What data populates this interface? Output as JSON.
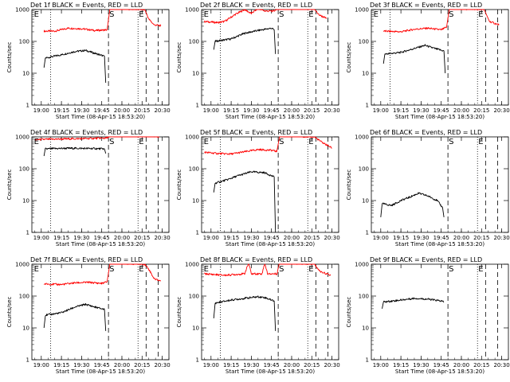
{
  "figure": {
    "x_axis_label": "Start Time (08-Apr-15 18:53:20)",
    "y_axis_label": "Counts/sec",
    "x_tick_labels": [
      "19:00",
      "19:15",
      "19:30",
      "19:45",
      "20:00",
      "20:15",
      "20:30"
    ],
    "y_tick_labels": [
      "1",
      "10",
      "100",
      "1000"
    ],
    "colors": {
      "events": "#000000",
      "lld": "#ff0000",
      "background": "#ffffff"
    }
  },
  "chart_data": [
    {
      "type": "line",
      "title": "Det 1f BLACK = Events, RED = LLD",
      "xlabel": "Start Time (08-Apr-15 18:53:20)",
      "ylabel": "Counts/sec",
      "x_range": [
        "18:53",
        "20:35"
      ],
      "ylim": [
        1,
        1000
      ],
      "y_scale": "log",
      "markers": [
        {
          "label": "E",
          "time": "18:54"
        },
        {
          "label": "S",
          "time": "19:50"
        },
        {
          "label": "E",
          "time": "20:12"
        }
      ],
      "dotted_lines": [
        "19:07",
        "20:12"
      ],
      "dashed_lines": [
        "19:50",
        "20:18",
        "20:27"
      ],
      "series": [
        {
          "color": "#ff0000",
          "points": [
            [
              "19:02",
              210
            ],
            [
              "19:10",
              210
            ],
            [
              "19:20",
              260
            ],
            [
              "19:30",
              250
            ],
            [
              "19:40",
              220
            ],
            [
              "19:49",
              230
            ],
            [
              "19:51",
              1100
            ],
            [
              "20:17",
              1000
            ],
            [
              "20:20",
              500
            ],
            [
              "20:24",
              330
            ],
            [
              "20:29",
              310
            ]
          ]
        },
        {
          "color": "#000000",
          "points": [
            [
              "19:02",
              15
            ],
            [
              "19:03",
              30
            ],
            [
              "19:15",
              38
            ],
            [
              "19:25",
              48
            ],
            [
              "19:33",
              52
            ],
            [
              "19:40",
              42
            ],
            [
              "19:47",
              34
            ],
            [
              "19:48",
              5
            ]
          ]
        }
      ]
    },
    {
      "type": "line",
      "title": "Det 2f BLACK = Events, RED = LLD",
      "xlabel": "Start Time (08-Apr-15 18:53:20)",
      "ylabel": "Counts/sec",
      "x_range": [
        "18:53",
        "20:35"
      ],
      "ylim": [
        1,
        1000
      ],
      "y_scale": "log",
      "markers": [
        {
          "label": "E",
          "time": "18:54"
        },
        {
          "label": "S",
          "time": "19:50"
        },
        {
          "label": "E",
          "time": "20:12"
        }
      ],
      "dotted_lines": [
        "19:07",
        "20:12"
      ],
      "dashed_lines": [
        "19:50",
        "20:18",
        "20:27"
      ],
      "series": [
        {
          "color": "#ff0000",
          "points": [
            [
              "18:55",
              420
            ],
            [
              "19:05",
              390
            ],
            [
              "19:10",
              420
            ],
            [
              "19:18",
              700
            ],
            [
              "19:25",
              1000
            ],
            [
              "19:30",
              750
            ],
            [
              "19:35",
              1100
            ],
            [
              "19:40",
              900
            ],
            [
              "19:47",
              900
            ],
            [
              "19:50",
              1200
            ],
            [
              "20:16",
              1200
            ],
            [
              "20:20",
              700
            ],
            [
              "20:26",
              520
            ]
          ]
        },
        {
          "color": "#000000",
          "points": [
            [
              "19:02",
              55
            ],
            [
              "19:03",
              100
            ],
            [
              "19:15",
              120
            ],
            [
              "19:25",
              180
            ],
            [
              "19:35",
              220
            ],
            [
              "19:45",
              260
            ],
            [
              "19:47",
              230
            ],
            [
              "19:48",
              40
            ]
          ]
        }
      ]
    },
    {
      "type": "line",
      "title": "Det 3f BLACK = Events, RED = LLD",
      "xlabel": "Start Time (08-Apr-15 18:53:20)",
      "ylabel": "Counts/sec",
      "x_range": [
        "18:53",
        "20:35"
      ],
      "ylim": [
        1,
        1000
      ],
      "y_scale": "log",
      "markers": [
        {
          "label": "E",
          "time": "18:54"
        },
        {
          "label": "S",
          "time": "19:50"
        },
        {
          "label": "E",
          "time": "20:12"
        }
      ],
      "dotted_lines": [
        "19:07",
        "20:12"
      ],
      "dashed_lines": [
        "19:50",
        "20:18",
        "20:27"
      ],
      "series": [
        {
          "color": "#ff0000",
          "points": [
            [
              "19:02",
              210
            ],
            [
              "19:15",
              200
            ],
            [
              "19:25",
              240
            ],
            [
              "19:35",
              260
            ],
            [
              "19:45",
              230
            ],
            [
              "19:49",
              280
            ],
            [
              "19:51",
              1100
            ],
            [
              "20:17",
              1000
            ],
            [
              "20:21",
              420
            ],
            [
              "20:28",
              330
            ]
          ]
        },
        {
          "color": "#000000",
          "points": [
            [
              "19:02",
              20
            ],
            [
              "19:03",
              40
            ],
            [
              "19:15",
              45
            ],
            [
              "19:25",
              60
            ],
            [
              "19:33",
              75
            ],
            [
              "19:40",
              60
            ],
            [
              "19:47",
              50
            ],
            [
              "19:48",
              10
            ]
          ]
        }
      ]
    },
    {
      "type": "line",
      "title": "Det 4f BLACK = Events, RED = LLD",
      "xlabel": "Start Time (08-Apr-15 18:53:20)",
      "ylabel": "Counts/sec",
      "x_range": [
        "18:53",
        "20:35"
      ],
      "ylim": [
        1,
        1000
      ],
      "y_scale": "log",
      "markers": [
        {
          "label": "E",
          "time": "18:54"
        },
        {
          "label": "S",
          "time": "19:50"
        },
        {
          "label": "E",
          "time": "20:12"
        }
      ],
      "dotted_lines": [
        "19:07",
        "20:12"
      ],
      "dashed_lines": [
        "19:50",
        "20:18",
        "20:27"
      ],
      "series": [
        {
          "color": "#ff0000",
          "points": [
            [
              "18:55",
              820
            ],
            [
              "19:10",
              850
            ],
            [
              "19:30",
              880
            ],
            [
              "19:49",
              920
            ],
            [
              "19:51",
              1200
            ],
            [
              "20:16",
              1200
            ],
            [
              "20:20",
              1100
            ],
            [
              "20:28",
              1000
            ]
          ]
        },
        {
          "color": "#000000",
          "points": [
            [
              "19:02",
              250
            ],
            [
              "19:03",
              420
            ],
            [
              "19:20",
              440
            ],
            [
              "19:40",
              430
            ],
            [
              "19:47",
              420
            ],
            [
              "19:48",
              300
            ]
          ]
        }
      ]
    },
    {
      "type": "line",
      "title": "Det 5f BLACK = Events, RED = LLD",
      "xlabel": "Start Time (08-Apr-15 18:53:20)",
      "ylabel": "Counts/sec",
      "x_range": [
        "18:53",
        "20:35"
      ],
      "ylim": [
        1,
        1000
      ],
      "y_scale": "log",
      "markers": [
        {
          "label": "E",
          "time": "18:54"
        },
        {
          "label": "S",
          "time": "19:50"
        },
        {
          "label": "E",
          "time": "20:12"
        }
      ],
      "dotted_lines": [
        "19:07",
        "20:12"
      ],
      "dashed_lines": [
        "19:50",
        "20:18",
        "20:27"
      ],
      "series": [
        {
          "color": "#ff0000",
          "points": [
            [
              "18:55",
              330
            ],
            [
              "19:05",
              300
            ],
            [
              "19:15",
              290
            ],
            [
              "19:25",
              340
            ],
            [
              "19:35",
              400
            ],
            [
              "19:45",
              380
            ],
            [
              "19:49",
              350
            ],
            [
              "19:51",
              1100
            ],
            [
              "20:17",
              1000
            ],
            [
              "20:22",
              700
            ],
            [
              "20:30",
              450
            ]
          ]
        },
        {
          "color": "#000000",
          "points": [
            [
              "19:02",
              18
            ],
            [
              "19:03",
              35
            ],
            [
              "19:12",
              45
            ],
            [
              "19:20",
              60
            ],
            [
              "19:30",
              80
            ],
            [
              "19:40",
              75
            ],
            [
              "19:47",
              55
            ],
            [
              "19:48",
              1
            ]
          ]
        }
      ]
    },
    {
      "type": "line",
      "title": "Det 6f BLACK = Events, RED = LLD",
      "xlabel": "Start Time (08-Apr-15 18:53:20)",
      "ylabel": "Counts/sec",
      "x_range": [
        "18:53",
        "20:35"
      ],
      "ylim": [
        1,
        1000
      ],
      "y_scale": "log",
      "markers": [
        {
          "label": "S",
          "time": "19:50"
        },
        {
          "label": "E",
          "time": "20:12"
        }
      ],
      "dotted_lines": [
        "20:12"
      ],
      "dashed_lines": [
        "19:50",
        "20:18",
        "20:27"
      ],
      "series": [
        {
          "color": "#000000",
          "points": [
            [
              "19:00",
              3
            ],
            [
              "19:01",
              8
            ],
            [
              "19:08",
              7
            ],
            [
              "19:15",
              10
            ],
            [
              "19:22",
              13
            ],
            [
              "19:28",
              17
            ],
            [
              "19:35",
              14
            ],
            [
              "19:42",
              10
            ],
            [
              "19:46",
              6
            ],
            [
              "19:47",
              3
            ]
          ]
        }
      ]
    },
    {
      "type": "line",
      "title": "Det 7f BLACK = Events, RED = LLD",
      "xlabel": "Start Time (08-Apr-15 18:53:20)",
      "ylabel": "Counts/sec",
      "x_range": [
        "18:53",
        "20:35"
      ],
      "ylim": [
        1,
        1000
      ],
      "y_scale": "log",
      "markers": [
        {
          "label": "E",
          "time": "18:54"
        },
        {
          "label": "S",
          "time": "19:50"
        },
        {
          "label": "E",
          "time": "20:12"
        }
      ],
      "dotted_lines": [
        "19:07",
        "20:12"
      ],
      "dashed_lines": [
        "19:50",
        "20:18",
        "20:27"
      ],
      "series": [
        {
          "color": "#ff0000",
          "points": [
            [
              "19:02",
              240
            ],
            [
              "19:15",
              230
            ],
            [
              "19:25",
              260
            ],
            [
              "19:35",
              270
            ],
            [
              "19:45",
              250
            ],
            [
              "19:49",
              280
            ],
            [
              "19:51",
              1100
            ],
            [
              "20:17",
              1000
            ],
            [
              "20:20",
              700
            ],
            [
              "20:24",
              350
            ],
            [
              "20:29",
              300
            ]
          ]
        },
        {
          "color": "#000000",
          "points": [
            [
              "19:02",
              10
            ],
            [
              "19:03",
              25
            ],
            [
              "19:15",
              30
            ],
            [
              "19:25",
              45
            ],
            [
              "19:33",
              55
            ],
            [
              "19:40",
              45
            ],
            [
              "19:47",
              38
            ],
            [
              "19:48",
              8
            ]
          ]
        }
      ]
    },
    {
      "type": "line",
      "title": "Det 8f BLACK = Events, RED = LLD",
      "xlabel": "Start Time (08-Apr-15 18:53:20)",
      "ylabel": "Counts/sec",
      "x_range": [
        "18:53",
        "20:35"
      ],
      "ylim": [
        1,
        1000
      ],
      "y_scale": "log",
      "markers": [
        {
          "label": "E",
          "time": "18:54"
        },
        {
          "label": "S",
          "time": "19:50"
        },
        {
          "label": "E",
          "time": "20:12"
        }
      ],
      "dotted_lines": [
        "19:07",
        "20:12"
      ],
      "dashed_lines": [
        "19:50",
        "20:18",
        "20:27"
      ],
      "series": [
        {
          "color": "#ff0000",
          "points": [
            [
              "18:55",
              500
            ],
            [
              "19:10",
              450
            ],
            [
              "19:25",
              500
            ],
            [
              "19:28",
              1100
            ],
            [
              "19:30",
              500
            ],
            [
              "19:38",
              500
            ],
            [
              "19:40",
              1100
            ],
            [
              "19:42",
              500
            ],
            [
              "19:49",
              500
            ],
            [
              "19:51",
              1100
            ],
            [
              "20:17",
              1000
            ],
            [
              "20:21",
              600
            ],
            [
              "20:29",
              450
            ]
          ]
        },
        {
          "color": "#000000",
          "points": [
            [
              "19:02",
              20
            ],
            [
              "19:03",
              60
            ],
            [
              "19:15",
              75
            ],
            [
              "19:25",
              85
            ],
            [
              "19:35",
              95
            ],
            [
              "19:40",
              90
            ],
            [
              "19:47",
              70
            ],
            [
              "19:48",
              8
            ]
          ]
        }
      ]
    },
    {
      "type": "line",
      "title": "Det 9f BLACK = Events, RED = LLD",
      "xlabel": "Start Time (08-Apr-15 18:53:20)",
      "ylabel": "Counts/sec",
      "x_range": [
        "18:53",
        "20:35"
      ],
      "ylim": [
        1,
        1000
      ],
      "y_scale": "log",
      "markers": [
        {
          "label": "S",
          "time": "19:50"
        },
        {
          "label": "E",
          "time": "20:12"
        }
      ],
      "dotted_lines": [
        "20:12"
      ],
      "dashed_lines": [
        "19:50",
        "20:18",
        "20:27"
      ],
      "series": [
        {
          "color": "#000000",
          "points": [
            [
              "19:01",
              40
            ],
            [
              "19:02",
              65
            ],
            [
              "19:15",
              75
            ],
            [
              "19:25",
              85
            ],
            [
              "19:35",
              80
            ],
            [
              "19:45",
              70
            ],
            [
              "19:47",
              65
            ]
          ]
        }
      ]
    }
  ]
}
